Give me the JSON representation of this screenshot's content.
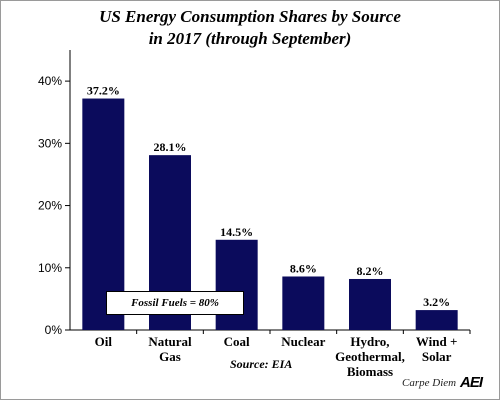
{
  "chart_data": {
    "type": "bar",
    "title_line1": "US Energy Consumption Shares by Source",
    "title_line2": "in 2017 (through September)",
    "categories": [
      [
        "Oil"
      ],
      [
        "Natural",
        "Gas"
      ],
      [
        "Coal"
      ],
      [
        "Nuclear"
      ],
      [
        "Hydro,",
        "Geothermal,",
        "Biomass"
      ],
      [
        "Wind +",
        "Solar"
      ]
    ],
    "values": [
      37.2,
      28.1,
      14.5,
      8.6,
      8.2,
      3.2
    ],
    "value_labels": [
      "37.2%",
      "28.1%",
      "14.5%",
      "8.6%",
      "8.2%",
      "3.2%"
    ],
    "ylim": [
      0,
      45
    ],
    "yticks": [
      0,
      10,
      20,
      30,
      40
    ],
    "ytick_labels": [
      "0%",
      "10%",
      "20%",
      "30%",
      "40%"
    ],
    "bar_color": "#0b0b5c",
    "grid": false,
    "annotation": "Fossil Fuels = 80%",
    "source": "Source: EIA"
  },
  "branding": {
    "text": "Carpe Diem",
    "logo": "AEI"
  }
}
